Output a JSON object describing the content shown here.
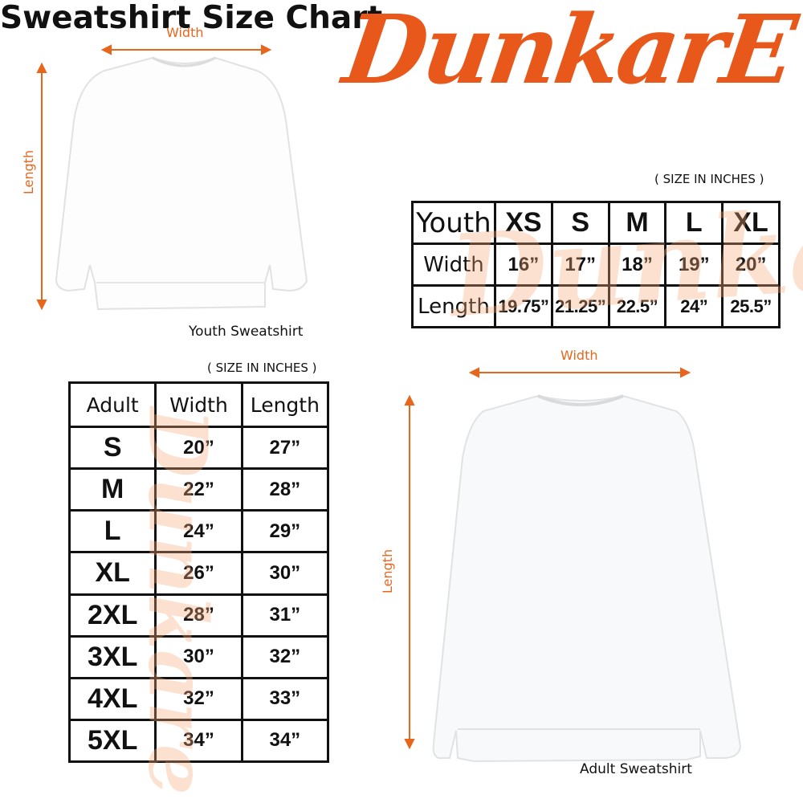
{
  "brand": {
    "logo_text": "DunkarE",
    "color": "#e8581a"
  },
  "title": "Sweatshirt Size Chart",
  "youth": {
    "unit_note": "( SIZE IN INCHES )",
    "caption": "Youth Sweatshirt",
    "width_label": "Width",
    "length_label": "Length",
    "header": [
      "Youth",
      "XS",
      "S",
      "M",
      "L",
      "XL"
    ],
    "rows": [
      [
        "Width",
        "16”",
        "17”",
        "18”",
        "19”",
        "20”"
      ],
      [
        "Length",
        "19.75”",
        "21.25”",
        "22.5”",
        "24”",
        "25.5”"
      ]
    ]
  },
  "adult": {
    "unit_note": "( SIZE IN INCHES )",
    "caption": "Adult Sweatshirt",
    "width_label": "Width",
    "length_label": "Length",
    "header": [
      "Adult",
      "Width",
      "Length"
    ],
    "rows": [
      [
        "S",
        "20”",
        "27”"
      ],
      [
        "M",
        "22”",
        "28”"
      ],
      [
        "L",
        "24”",
        "29”"
      ],
      [
        "XL",
        "26”",
        "30”"
      ],
      [
        "2XL",
        "28”",
        "31”"
      ],
      [
        "3XL",
        "30”",
        "32”"
      ],
      [
        "4XL",
        "32”",
        "33”"
      ],
      [
        "5XL",
        "34”",
        "34”"
      ]
    ]
  },
  "accent": "#e8661c"
}
